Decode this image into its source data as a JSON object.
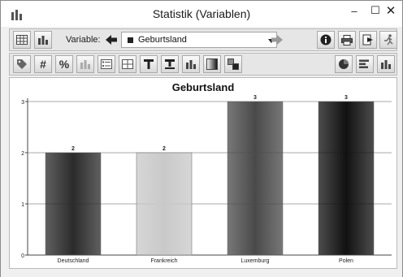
{
  "window": {
    "title": "Statistik (Variablen)",
    "icon": "bar-chart-icon",
    "controls": {
      "minimize": "–",
      "maximize": "☐",
      "close": "✕"
    }
  },
  "toolbar1": {
    "variable_label": "Variable:",
    "selected_variable": "Geburtsland",
    "buttons": [
      "table-view-icon",
      "chart-view-icon",
      "previous-variable-icon",
      "next-variable-icon",
      "info-icon",
      "print-icon",
      "export-icon",
      "run-icon"
    ]
  },
  "toolbar2": {
    "buttons": [
      "tag-icon",
      "hash-icon",
      "percent-icon",
      "bar-chart-icon",
      "list-icon",
      "grid-icon",
      "title-icon",
      "title-underline-icon",
      "bar-chart-icon",
      "gradient-icon",
      "color-blocks-icon",
      "pie-icon",
      "horizontal-bars-icon",
      "vertical-bars-icon"
    ],
    "hash_label": "#",
    "percent_label": "%"
  },
  "chart_data": {
    "type": "bar",
    "title": "Geburtsland",
    "categories": [
      "Deutschland",
      "Frankreich",
      "Luxemburg",
      "Polen"
    ],
    "values": [
      2,
      2,
      3,
      3
    ],
    "data_labels": [
      "2",
      "2",
      "3",
      "3"
    ],
    "ylim": [
      0,
      3
    ],
    "yticks": [
      "0",
      "1",
      "2",
      "3"
    ],
    "grid": true,
    "bar_colors": [
      "#2b2b2b",
      "#c9c9c9",
      "#4a4a4a",
      "#111111"
    ]
  }
}
